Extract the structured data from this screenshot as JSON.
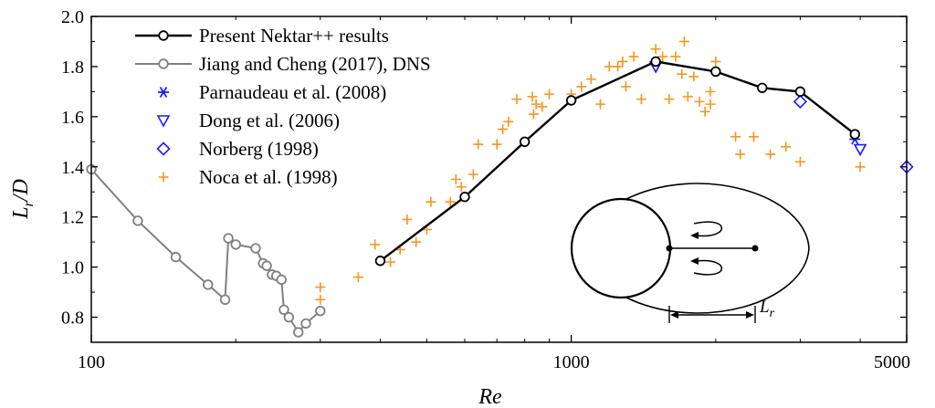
{
  "chart_data": {
    "type": "scatter",
    "xlabel": "Re",
    "ylabel": {
      "main": "L",
      "sub": "r",
      "rest": "/D"
    },
    "xscale": "log",
    "xlim": [
      100,
      5000
    ],
    "ylim": [
      0.7,
      2.0
    ],
    "x_ticks": [
      100,
      1000,
      5000
    ],
    "x_tick_labels": [
      "100",
      "1000",
      "5000"
    ],
    "y_ticks": [
      0.8,
      1.0,
      1.2,
      1.4,
      1.6,
      1.8,
      2.0
    ],
    "y_tick_labels": [
      "0.8",
      "1.0",
      "1.2",
      "1.4",
      "1.6",
      "1.8",
      "2.0"
    ],
    "legend_position": "top-left",
    "series": [
      {
        "name": "Present Nektar++ results",
        "marker": "circle",
        "line": true,
        "color": "#000000",
        "x": [
          400,
          600,
          800,
          1000,
          1500,
          2000,
          2500,
          3000,
          3900
        ],
        "y": [
          1.025,
          1.28,
          1.5,
          1.665,
          1.82,
          1.78,
          1.715,
          1.7,
          1.53
        ]
      },
      {
        "name": "Jiang and Cheng (2017), DNS",
        "marker": "circle",
        "line": true,
        "color": "#808080",
        "x": [
          100,
          125,
          150,
          175,
          190,
          193,
          200,
          220,
          228,
          232,
          238,
          243,
          249,
          252,
          258,
          270,
          280,
          300
        ],
        "y": [
          1.39,
          1.185,
          1.04,
          0.93,
          0.87,
          1.115,
          1.09,
          1.075,
          1.015,
          1.005,
          0.97,
          0.965,
          0.95,
          0.83,
          0.8,
          0.74,
          0.775,
          0.825
        ]
      },
      {
        "name": "Parnaudeau et al. (2008)",
        "marker": "asterisk",
        "line": false,
        "color": "#1a1aff",
        "x": [
          3900
        ],
        "y": [
          1.51
        ]
      },
      {
        "name": "Dong et al. (2006)",
        "marker": "triangle-down",
        "line": false,
        "color": "#1a1aff",
        "x": [
          1500,
          4000
        ],
        "y": [
          1.8,
          1.47
        ]
      },
      {
        "name": "Norberg (1998)",
        "marker": "diamond",
        "line": false,
        "color": "#1a1aff",
        "x": [
          3000,
          5000
        ],
        "y": [
          1.66,
          1.4
        ]
      },
      {
        "name": "Noca et al. (1998)",
        "marker": "plus",
        "line": false,
        "color": "#f7941d",
        "x": [
          300,
          300,
          360,
          390,
          420,
          440,
          455,
          475,
          500,
          510,
          560,
          575,
          590,
          625,
          640,
          700,
          720,
          740,
          770,
          830,
          835,
          845,
          870,
          900,
          1000,
          1050,
          1100,
          1150,
          1200,
          1250,
          1280,
          1300,
          1350,
          1400,
          1500,
          1550,
          1600,
          1650,
          1700,
          1720,
          1750,
          1800,
          1850,
          1900,
          1950,
          1950,
          2000,
          2200,
          2250,
          2400,
          2600,
          2800,
          3000,
          4000
        ],
        "y": [
          0.92,
          0.87,
          0.96,
          1.09,
          1.02,
          1.07,
          1.19,
          1.1,
          1.15,
          1.26,
          1.26,
          1.35,
          1.32,
          1.37,
          1.49,
          1.49,
          1.55,
          1.58,
          1.67,
          1.68,
          1.61,
          1.65,
          1.64,
          1.69,
          1.69,
          1.72,
          1.75,
          1.65,
          1.8,
          1.8,
          1.82,
          1.72,
          1.84,
          1.67,
          1.87,
          1.84,
          1.67,
          1.84,
          1.77,
          1.9,
          1.68,
          1.76,
          1.66,
          1.62,
          1.7,
          1.65,
          1.82,
          1.52,
          1.45,
          1.52,
          1.45,
          1.48,
          1.42,
          1.4
        ]
      }
    ],
    "inset": {
      "label_main": "L",
      "label_sub": "r"
    }
  }
}
